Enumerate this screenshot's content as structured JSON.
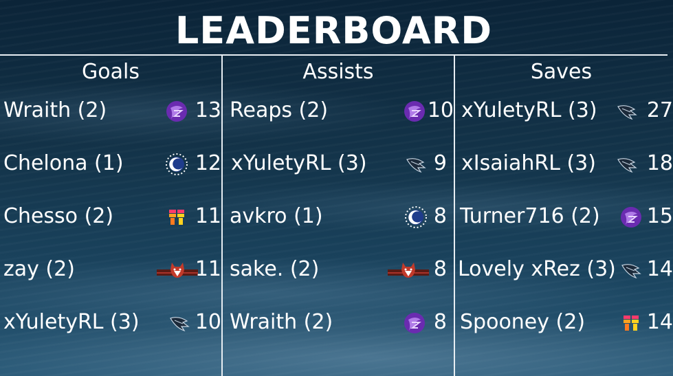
{
  "title": "LEADERBOARD",
  "columns": [
    {
      "heading": "Goals",
      "rows": [
        {
          "name": "Wraith (2)",
          "logo": "purple-swirl-team-logo-icon",
          "count": "13"
        },
        {
          "name": "Chelona (1)",
          "logo": "blue-crescent-team-logo-icon",
          "count": "12"
        },
        {
          "name": "Chesso (2)",
          "logo": "colorful-block-team-logo-icon",
          "count": "11"
        },
        {
          "name": "zay (2)",
          "logo": "red-fox-banner-team-logo-icon",
          "count": "11"
        },
        {
          "name": "xYuletyRL (3)",
          "logo": "dark-wing-team-logo-icon",
          "count": "10"
        }
      ]
    },
    {
      "heading": "Assists",
      "rows": [
        {
          "name": "Reaps (2)",
          "logo": "purple-swirl-team-logo-icon",
          "count": "10"
        },
        {
          "name": "xYuletyRL (3)",
          "logo": "dark-wing-team-logo-icon",
          "count": "9"
        },
        {
          "name": "avkro (1)",
          "logo": "blue-crescent-team-logo-icon",
          "count": "8"
        },
        {
          "name": "sake. (2)",
          "logo": "red-fox-banner-team-logo-icon",
          "count": "8"
        },
        {
          "name": "Wraith (2)",
          "logo": "purple-swirl-team-logo-icon",
          "count": "8"
        }
      ]
    },
    {
      "heading": "Saves",
      "rows": [
        {
          "name": "xYuletyRL (3)",
          "logo": "dark-wing-team-logo-icon",
          "count": "27"
        },
        {
          "name": "xIsaiahRL (3)",
          "logo": "dark-wing-team-logo-icon",
          "count": "18"
        },
        {
          "name": "Turner716 (2)",
          "logo": "purple-swirl-team-logo-icon",
          "count": "15"
        },
        {
          "name": "Lovely xRez (3)",
          "logo": "dark-wing-team-logo-icon",
          "count": "14"
        },
        {
          "name": "Spooney (2)",
          "logo": "colorful-block-team-logo-icon",
          "count": "14"
        }
      ]
    }
  ],
  "colors": {
    "text": "#ffffff",
    "divider": "#e8eef3",
    "background": "#133349",
    "purple_logo": "#6a2bb0",
    "fox_logo": "#c23a2a"
  }
}
